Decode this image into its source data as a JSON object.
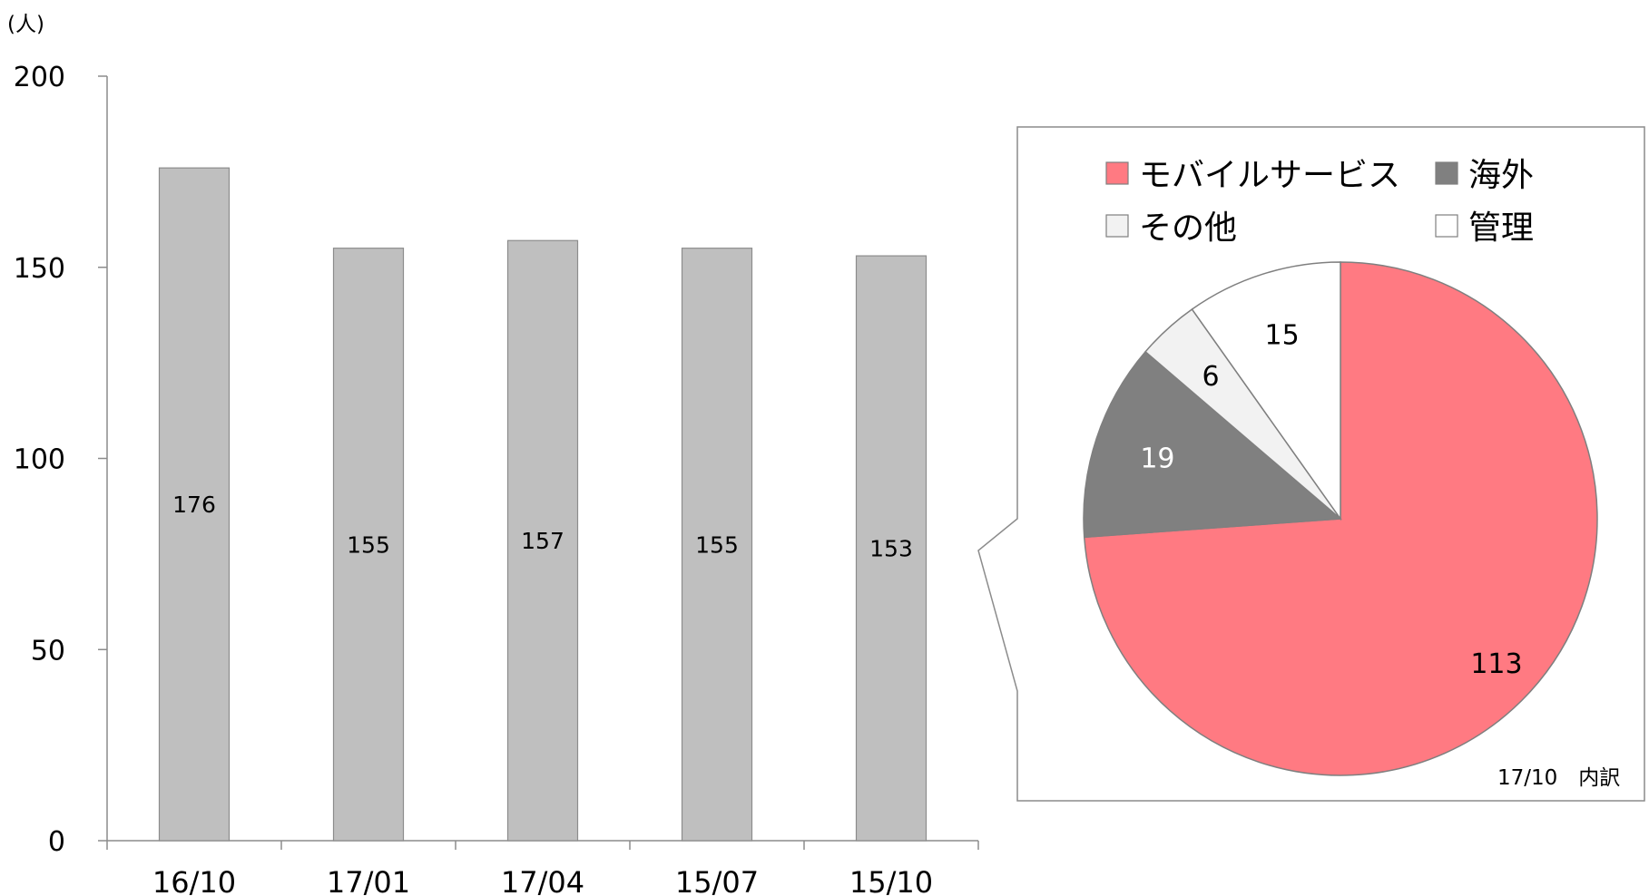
{
  "chart_data": [
    {
      "type": "bar",
      "unit_label": "(人)",
      "categories": [
        "16/10",
        "17/01",
        "17/04",
        "15/07",
        "15/10"
      ],
      "values": [
        176,
        155,
        157,
        155,
        153
      ],
      "ylim": [
        0,
        200
      ],
      "yticks": [
        0,
        50,
        100,
        150,
        200
      ],
      "bar_color": "#bfbfbf",
      "grid": false
    },
    {
      "type": "pie",
      "note": "17/10　内訳",
      "slices": [
        {
          "label": "モバイルサービス",
          "value": 113,
          "color": "#ff7a82",
          "label_color": "#000000"
        },
        {
          "label": "海外",
          "value": 19,
          "color": "#808080",
          "label_color": "#ffffff"
        },
        {
          "label": "その他",
          "value": 6,
          "color": "#f2f2f2",
          "label_color": "#000000"
        },
        {
          "label": "管理",
          "value": 15,
          "color": "#ffffff",
          "label_color": "#000000"
        }
      ],
      "legend_position": "top"
    }
  ]
}
